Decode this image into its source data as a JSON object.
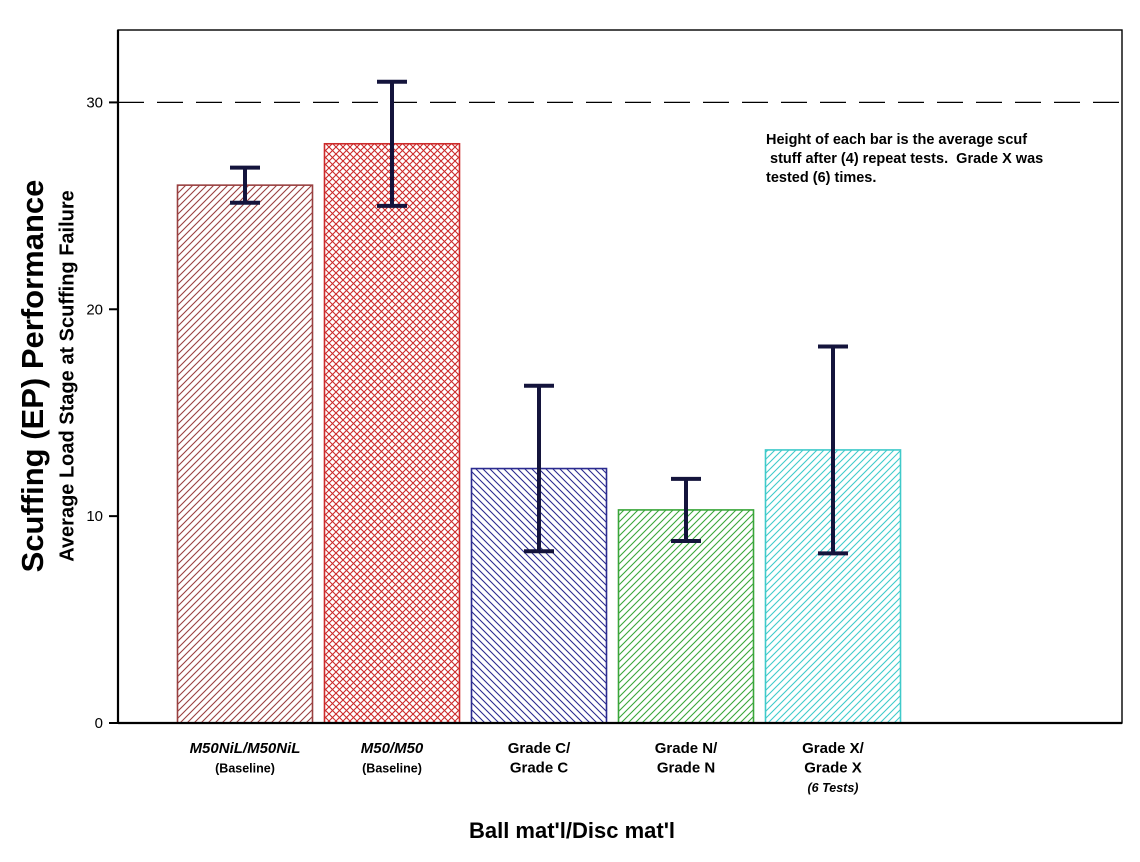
{
  "chart_data": {
    "type": "bar",
    "title": "",
    "xlabel": "Ball mat'l/Disc mat'l",
    "ylabel_primary": "Scuffing (EP) Performance",
    "ylabel_secondary": "Average Load Stage at Scuffing Failure",
    "ylim": [
      0,
      33.5
    ],
    "yticks": [
      0,
      10,
      20,
      30
    ],
    "reference_line": 30,
    "grid": false,
    "legend": "none",
    "annotation": "Height of each bar is the average scuf\n stuff after (4) repeat tests.  Grade X was\ntested (6) times.",
    "categories": [
      {
        "lines": [
          {
            "text": "M50NiL/M50NiL",
            "italic": true,
            "sub": false
          },
          {
            "text": "(Baseline)",
            "italic": false,
            "sub": true
          }
        ]
      },
      {
        "lines": [
          {
            "text": "M50/M50",
            "italic": true,
            "sub": false
          },
          {
            "text": "(Baseline)",
            "italic": false,
            "sub": true
          }
        ]
      },
      {
        "lines": [
          {
            "text": "Grade C/",
            "italic": false,
            "sub": false
          },
          {
            "text": "Grade C",
            "italic": false,
            "sub": false
          }
        ]
      },
      {
        "lines": [
          {
            "text": "Grade N/",
            "italic": false,
            "sub": false
          },
          {
            "text": "Grade N",
            "italic": false,
            "sub": false
          }
        ]
      },
      {
        "lines": [
          {
            "text": "Grade X/",
            "italic": false,
            "sub": false
          },
          {
            "text": "Grade X",
            "italic": false,
            "sub": false
          },
          {
            "text": "(6 Tests)",
            "italic": true,
            "sub": true
          }
        ]
      }
    ],
    "values": [
      26,
      28,
      12.3,
      10.3,
      13.2
    ],
    "errors": [
      0.85,
      3.0,
      4.0,
      1.5,
      5.0
    ],
    "bars": [
      {
        "color": "#994040",
        "hatch": "diag-up"
      },
      {
        "color": "#cc2a2a",
        "hatch": "cross"
      },
      {
        "color": "#2b2b8f",
        "hatch": "diag-down"
      },
      {
        "color": "#3aa63a",
        "hatch": "diag-up"
      },
      {
        "color": "#3fcaca",
        "hatch": "diag-up"
      }
    ],
    "error_color": "#14143c",
    "axis_color": "#000000",
    "reference_line_style": "dashed"
  }
}
